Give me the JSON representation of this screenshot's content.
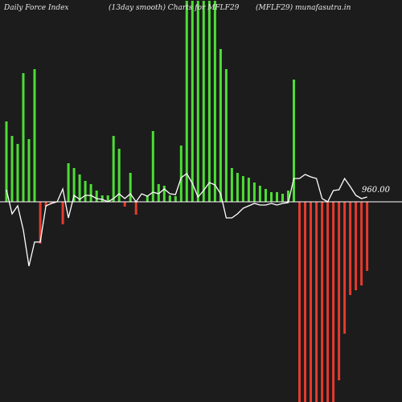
{
  "header": {
    "left": "Daily Force  Index",
    "center": "(13day smooth) Charts for MFLF29",
    "right": "(MFLF29) munafasutra.in"
  },
  "chart_data": {
    "type": "bar",
    "title": "Daily Force Index (13day smooth) Charts for MFLF29",
    "level_label": "960.00",
    "colors": {
      "positive": "#4ddd36",
      "negative": "#e53a2e",
      "line": "#ffffff",
      "zero": "#ffffff",
      "background": "#1c1c1c"
    },
    "bars": [
      100,
      82,
      72,
      160,
      78,
      165,
      -52,
      -6,
      -2,
      0,
      -28,
      48,
      42,
      34,
      26,
      22,
      14,
      8,
      8,
      82,
      66,
      -6,
      36,
      -16,
      0,
      7,
      88,
      22,
      20,
      8,
      7,
      70,
      250,
      250,
      250,
      250,
      250,
      250,
      190,
      165,
      42,
      36,
      32,
      30,
      24,
      20,
      16,
      12,
      12,
      10,
      14,
      152,
      -250,
      -250,
      -250,
      -250,
      -250,
      -250,
      -250,
      -222,
      -164,
      -116,
      -110,
      -104,
      -86
    ],
    "line": [
      15,
      -15,
      -5,
      -35,
      -80,
      -50,
      -50,
      -5,
      -2,
      0,
      16,
      -20,
      8,
      3,
      8,
      8,
      4,
      3,
      0,
      4,
      10,
      4,
      10,
      0,
      10,
      7,
      12,
      10,
      16,
      10,
      9,
      30,
      35,
      23,
      6,
      14,
      24,
      21,
      10,
      -20,
      -20,
      -15,
      -8,
      -5,
      -2,
      -4,
      -4,
      -2,
      -4,
      -2,
      -1,
      29,
      29,
      34,
      31,
      29,
      4,
      0,
      14,
      15,
      29,
      19,
      8,
      4,
      6
    ],
    "ylim": [
      -250,
      250
    ]
  }
}
